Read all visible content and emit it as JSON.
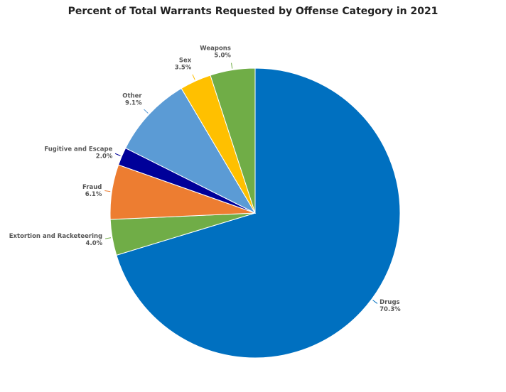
{
  "chart_data": {
    "type": "pie",
    "title": "Percent of Total Warrants Requested by Offense Category in 2021",
    "start_angle": "12 o'clock, clockwise",
    "slices": [
      {
        "name": "Drugs",
        "value": 70.3,
        "label": "70.3%",
        "color": "#0070C0"
      },
      {
        "name": "Extortion and Racketeering",
        "value": 4.0,
        "label": "4.0%",
        "color": "#70AD47"
      },
      {
        "name": "Fraud",
        "value": 6.1,
        "label": "6.1%",
        "color": "#ED7D31"
      },
      {
        "name": "Fugitive and Escape",
        "value": 2.0,
        "label": "2.0%",
        "color": "#000099"
      },
      {
        "name": "Other",
        "value": 9.1,
        "label": "9.1%",
        "color": "#5B9BD5"
      },
      {
        "name": "Sex",
        "value": 3.5,
        "label": "3.5%",
        "color": "#FFC000"
      },
      {
        "name": "Weapons",
        "value": 5.0,
        "label": "5.0%",
        "color": "#70AD47"
      }
    ]
  }
}
